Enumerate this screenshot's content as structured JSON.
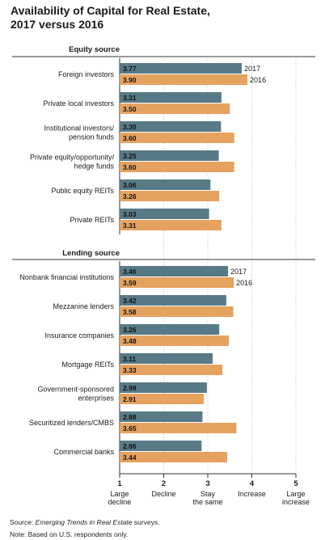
{
  "title_line1": "Availability of Capital for Real Estate,",
  "title_line2": "2017 versus 2016",
  "source_prefix": "Source: ",
  "source_title": "Emerging Trends in Real Estate",
  "source_suffix": " surveys.",
  "note": "Note: Based on U.S. respondents only.",
  "colors": {
    "series_2017": "#577a86",
    "series_2016": "#e6a25f",
    "rule": "#333333",
    "grid": "#9a9a9a"
  },
  "chart_data": {
    "type": "bar",
    "orientation": "horizontal",
    "xlim": [
      1,
      5
    ],
    "x_ticks": [
      {
        "value": 1,
        "label": "1",
        "desc": [
          "Large",
          "decline"
        ]
      },
      {
        "value": 2,
        "label": "2",
        "desc": [
          "Decline"
        ]
      },
      {
        "value": 3,
        "label": "3",
        "desc": [
          "Stay",
          "the same"
        ]
      },
      {
        "value": 4,
        "label": "4",
        "desc": [
          "Increase"
        ]
      },
      {
        "value": 5,
        "label": "5",
        "desc": [
          "Large",
          "increase"
        ]
      }
    ],
    "series_names": [
      "2017",
      "2016"
    ],
    "groups": [
      {
        "heading": "Equity source",
        "categories": [
          {
            "label": [
              "Foreign investors"
            ],
            "v2017": 3.77,
            "v2016": 3.9,
            "show_legend": true
          },
          {
            "label": [
              "Private local investors"
            ],
            "v2017": 3.31,
            "v2016": 3.5
          },
          {
            "label": [
              "Institutional investors/",
              "pension funds"
            ],
            "v2017": 3.3,
            "v2016": 3.6
          },
          {
            "label": [
              "Private equity/opportunity/",
              "hedge funds"
            ],
            "v2017": 3.25,
            "v2016": 3.6
          },
          {
            "label": [
              "Public equity REITs"
            ],
            "v2017": 3.06,
            "v2016": 3.26
          },
          {
            "label": [
              "Private REITs"
            ],
            "v2017": 3.03,
            "v2016": 3.31
          }
        ]
      },
      {
        "heading": "Lending source",
        "categories": [
          {
            "label": [
              "Nonbank financial institutions"
            ],
            "v2017": 3.46,
            "v2016": 3.59,
            "show_legend": true
          },
          {
            "label": [
              "Mezzanine lenders"
            ],
            "v2017": 3.42,
            "v2016": 3.58
          },
          {
            "label": [
              "Insurance companies"
            ],
            "v2017": 3.26,
            "v2016": 3.48
          },
          {
            "label": [
              "Mortgage REITs"
            ],
            "v2017": 3.11,
            "v2016": 3.33
          },
          {
            "label": [
              "Government-sponsored",
              "enterprises"
            ],
            "v2017": 2.98,
            "v2016": 2.91
          },
          {
            "label": [
              "Securitized lenders/CMBS"
            ],
            "v2017": 2.88,
            "v2016": 3.65
          },
          {
            "label": [
              "Commercial banks"
            ],
            "v2017": 2.86,
            "v2016": 3.44
          }
        ]
      }
    ]
  }
}
